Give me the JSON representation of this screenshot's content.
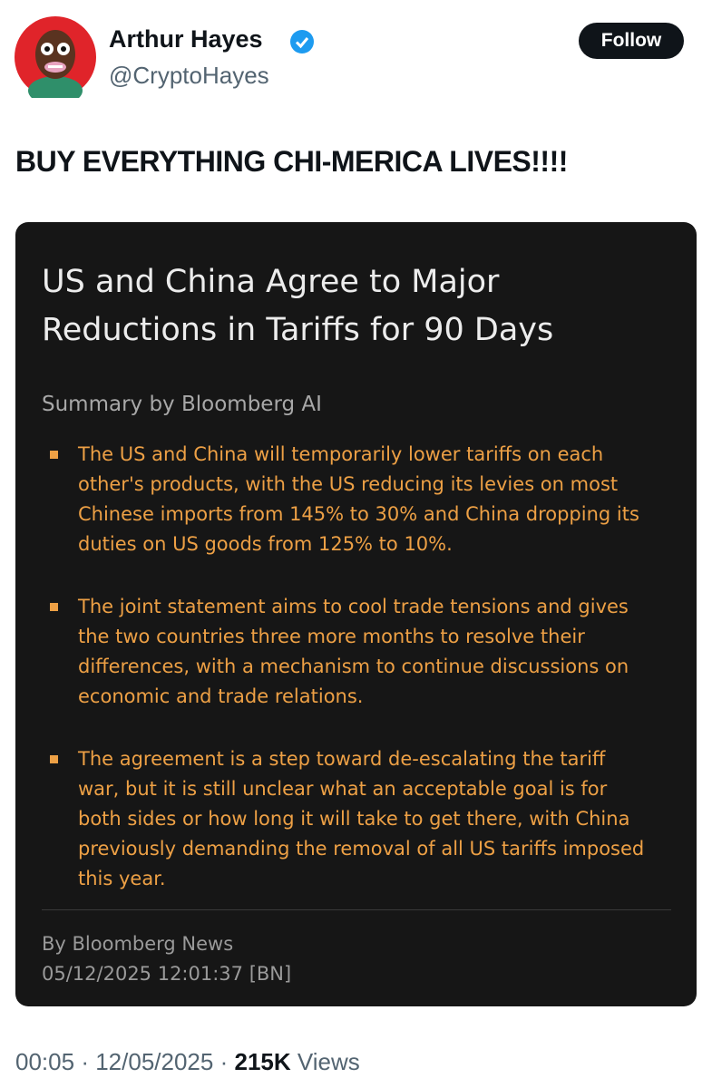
{
  "tweet": {
    "author": {
      "name": "Arthur Hayes",
      "handle": "@CryptoHayes"
    },
    "follow_button": "Follow",
    "text": "BUY EVERYTHING CHI-MERICA LIVES!!!!",
    "card": {
      "title": "US and China Agree to Major Reductions in Tariffs for 90 Days",
      "summary_label": "Summary by Bloomberg AI",
      "bullets": [
        "The US and China will temporarily lower tariffs on each other's products, with the US reducing its levies on most Chinese imports from 145% to 30% and China dropping its duties on US goods from 125% to 10%.",
        "The joint statement aims to cool trade tensions and gives the two countries three more months to resolve their differences, with a mechanism to continue discussions on economic and trade relations.",
        "The agreement is a step toward de-escalating the tariff war, but it is still unclear what an acceptable goal is for both sides or how long it will take to get there, with China previously demanding the removal of all US tariffs imposed this year."
      ],
      "byline": "By Bloomberg News",
      "timestamp": "05/12/2025 12:01:37 [BN]"
    },
    "footer": {
      "time": "00:05",
      "separator": "·",
      "date": "12/05/2025",
      "views_count": "215K",
      "views_label": "Views"
    }
  }
}
